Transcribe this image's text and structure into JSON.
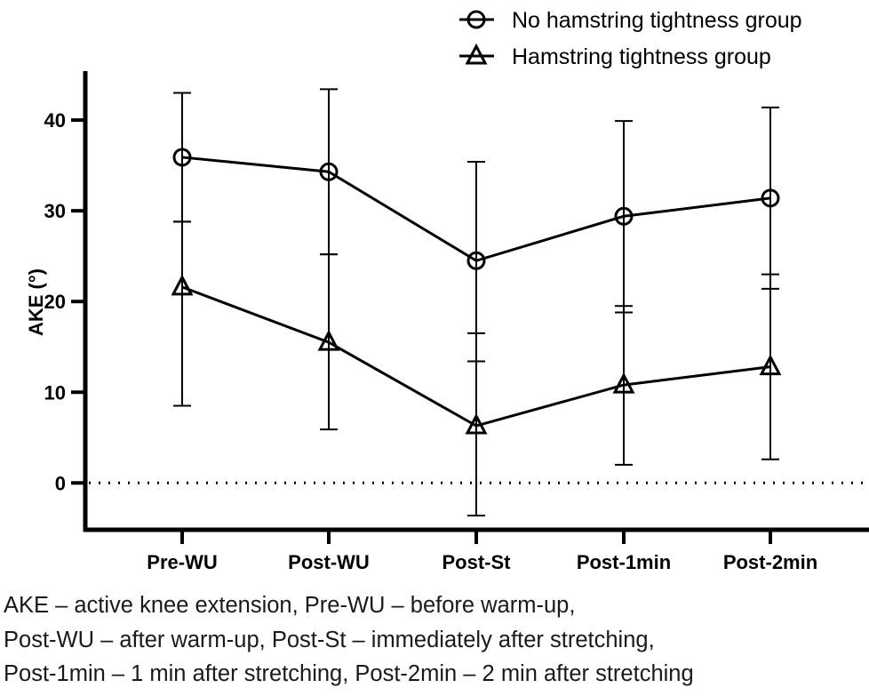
{
  "chart_data": {
    "type": "line",
    "title": "",
    "xlabel": "",
    "ylabel": "AKE (°)",
    "categories": [
      "Pre-WU",
      "Post-WU",
      "Post-St",
      "Post-1min",
      "Post-2min"
    ],
    "ylim": [
      -5,
      45
    ],
    "yticks": [
      "0",
      "10",
      "20",
      "30",
      "40"
    ],
    "reference_line": {
      "y": 0,
      "style": "dotted"
    },
    "legend_position": "top-right",
    "series": [
      {
        "name": "No hamstring tightness group",
        "marker": "circle",
        "values": [
          35.9,
          34.3,
          24.5,
          29.4,
          31.4
        ],
        "error_upper": [
          43.0,
          43.4,
          35.4,
          39.9,
          41.4
        ],
        "error_lower": [
          28.8,
          25.2,
          13.4,
          18.8,
          21.4
        ]
      },
      {
        "name": "Hamstring tightness group",
        "marker": "triangle",
        "values": [
          21.6,
          15.5,
          6.3,
          10.8,
          12.8
        ],
        "error_upper": [
          28.8,
          25.2,
          16.5,
          19.5,
          23.0
        ],
        "error_lower": [
          8.5,
          5.9,
          -3.6,
          2.0,
          2.6
        ]
      }
    ]
  },
  "caption": [
    "AKE – active knee extension, Pre-WU – before warm-up,",
    "Post-WU – after warm-up, Post-St – immediately after stretching,",
    "Post-1min – 1 min after stretching, Post-2min – 2 min after stretching"
  ]
}
